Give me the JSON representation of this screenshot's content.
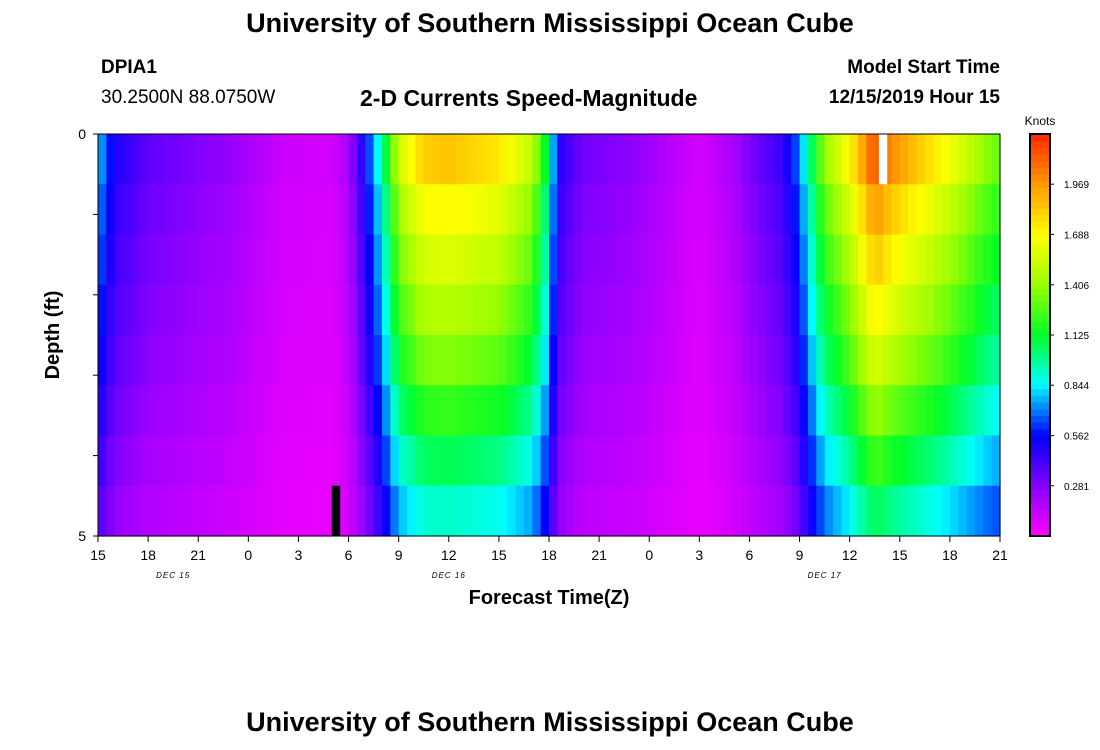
{
  "header": {
    "title": "University of Southern Mississippi Ocean Cube",
    "station_id": "DPIA1",
    "station_coords": "30.2500N 88.0750W",
    "plot_title": "2-D Currents Speed-Magnitude",
    "model_start_label": "Model Start Time",
    "model_start_value": "12/15/2019 Hour 15"
  },
  "footer": {
    "title": "University of Southern Mississippi Ocean Cube"
  },
  "chart_data": {
    "type": "heatmap",
    "xlabel": "Forecast Time(Z)",
    "ylabel": "Depth (ft)",
    "x_tick_labels": [
      "15",
      "18",
      "21",
      "0",
      "3",
      "6",
      "9",
      "12",
      "15",
      "18",
      "21",
      "0",
      "3",
      "6",
      "9",
      "12",
      "15",
      "18",
      "21"
    ],
    "date_labels": [
      {
        "text": "DEC 15",
        "at_tick": 1.5
      },
      {
        "text": "DEC 16",
        "at_tick": 7
      },
      {
        "text": "DEC 17",
        "at_tick": 14.5
      }
    ],
    "x_range_hours": [
      0,
      54
    ],
    "y_tick_labels": [
      "0",
      "5"
    ],
    "y_range_ft": [
      0,
      5
    ],
    "depth_layers": 8,
    "colorbar": {
      "unit": "Knots",
      "range": [
        0,
        2.25
      ],
      "tick_values": [
        0.281,
        0.562,
        0.844,
        1.125,
        1.406,
        1.688,
        1.969
      ]
    },
    "surface_peak_knots": [
      {
        "hour": 0,
        "value": 0.8
      },
      {
        "hour": 1,
        "value": 0.5
      },
      {
        "hour": 3,
        "value": 0.36
      },
      {
        "hour": 8,
        "value": 0.24
      },
      {
        "hour": 11,
        "value": 0.12
      },
      {
        "hour": 14,
        "value": 0.1
      },
      {
        "hour": 15,
        "value": 0.2
      },
      {
        "hour": 16,
        "value": 0.55
      },
      {
        "hour": 17,
        "value": 0.95
      },
      {
        "hour": 18,
        "value": 1.55
      },
      {
        "hour": 19.5,
        "value": 1.82
      },
      {
        "hour": 21,
        "value": 1.85
      },
      {
        "hour": 24,
        "value": 1.75
      },
      {
        "hour": 26,
        "value": 1.5
      },
      {
        "hour": 27,
        "value": 1.0
      },
      {
        "hour": 27.5,
        "value": 0.5
      },
      {
        "hour": 29,
        "value": 0.32
      },
      {
        "hour": 32,
        "value": 0.26
      },
      {
        "hour": 36,
        "value": 0.1
      },
      {
        "hour": 38,
        "value": 0.2
      },
      {
        "hour": 39,
        "value": 0.3
      },
      {
        "hour": 41,
        "value": 0.45
      },
      {
        "hour": 42,
        "value": 0.7
      },
      {
        "hour": 42.5,
        "value": 0.95
      },
      {
        "hour": 43.5,
        "value": 1.4
      },
      {
        "hour": 45,
        "value": 1.7
      },
      {
        "hour": 46.5,
        "value": 2.15
      },
      {
        "hour": 47.5,
        "value": 2.0
      },
      {
        "hour": 49,
        "value": 1.85
      },
      {
        "hour": 51,
        "value": 1.65
      },
      {
        "hour": 53,
        "value": 1.4
      },
      {
        "hour": 54,
        "value": 1.3
      }
    ],
    "depth_factors": [
      1.0,
      0.92,
      0.86,
      0.8,
      0.74,
      0.66,
      0.58,
      0.5
    ],
    "missing_cells": [
      {
        "hour_start": 46.75,
        "hour_end": 47.25,
        "layer": 0,
        "fill": "white"
      },
      {
        "hour_start": 14.0,
        "hour_end": 14.5,
        "layer": 7,
        "fill": "black"
      }
    ]
  }
}
